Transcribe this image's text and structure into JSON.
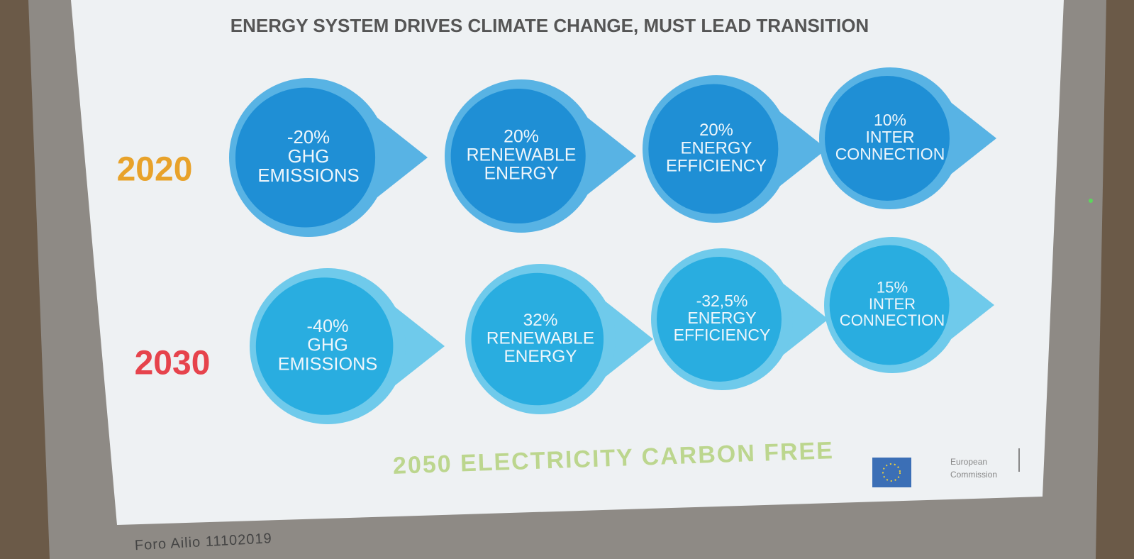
{
  "slide": {
    "title": "ENERGY SYSTEM DRIVES CLIMATE CHANGE, MUST LEAD TRANSITION",
    "rows": [
      {
        "year": "2020",
        "items": [
          [
            "-20%",
            "GHG",
            "EMISSIONS"
          ],
          [
            "20%",
            "RENEWABLE",
            "ENERGY"
          ],
          [
            "20%",
            "ENERGY",
            "EFFICIENCY"
          ],
          [
            "10%",
            "INTER",
            "CONNECTION"
          ]
        ]
      },
      {
        "year": "2030",
        "items": [
          [
            "-40%",
            "GHG",
            "EMISSIONS"
          ],
          [
            "32%",
            "RENEWABLE",
            "ENERGY"
          ],
          [
            "-32,5%",
            "ENERGY",
            "EFFICIENCY"
          ],
          [
            "15%",
            "INTER",
            "CONNECTION"
          ]
        ]
      }
    ],
    "footer": "2050 ELECTRICITY CARBON FREE",
    "logo": [
      "European",
      "Commission"
    ]
  },
  "caption": "Foro Ailio 11102019"
}
